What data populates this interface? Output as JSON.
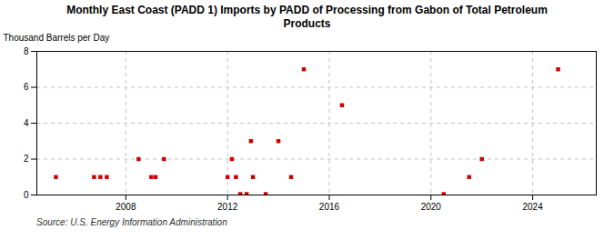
{
  "chart_data": {
    "type": "scatter",
    "title": "Monthly East Coast (PADD 1) Imports by PADD of Processing from Gabon of Total Petroleum\nProducts",
    "ylabel": "Thousand Barrels per Day",
    "source": "Source: U.S. Energy Information Administration",
    "x": [
      2005.25,
      2006.75,
      2007.0,
      2007.25,
      2008.5,
      2009.0,
      2009.17,
      2009.5,
      2012.0,
      2012.17,
      2012.33,
      2012.5,
      2012.75,
      2012.92,
      2013.0,
      2013.5,
      2014.0,
      2014.5,
      2015.0,
      2016.5,
      2020.5,
      2021.5,
      2022.0,
      2025.0
    ],
    "values": [
      1,
      1,
      1,
      1,
      2,
      1,
      1,
      2,
      1,
      2,
      1,
      0.05,
      0.05,
      3,
      1,
      0.05,
      3,
      1,
      7,
      5,
      0.05,
      1,
      2,
      7
    ],
    "color": "#cc0000",
    "marker": "square",
    "xlim": [
      2004.5,
      2026.5
    ],
    "xticks": [
      2008,
      2012,
      2016,
      2020,
      2024
    ],
    "ylim": [
      0,
      8
    ],
    "yticks": [
      0,
      2,
      4,
      6,
      8
    ],
    "grid": true
  }
}
